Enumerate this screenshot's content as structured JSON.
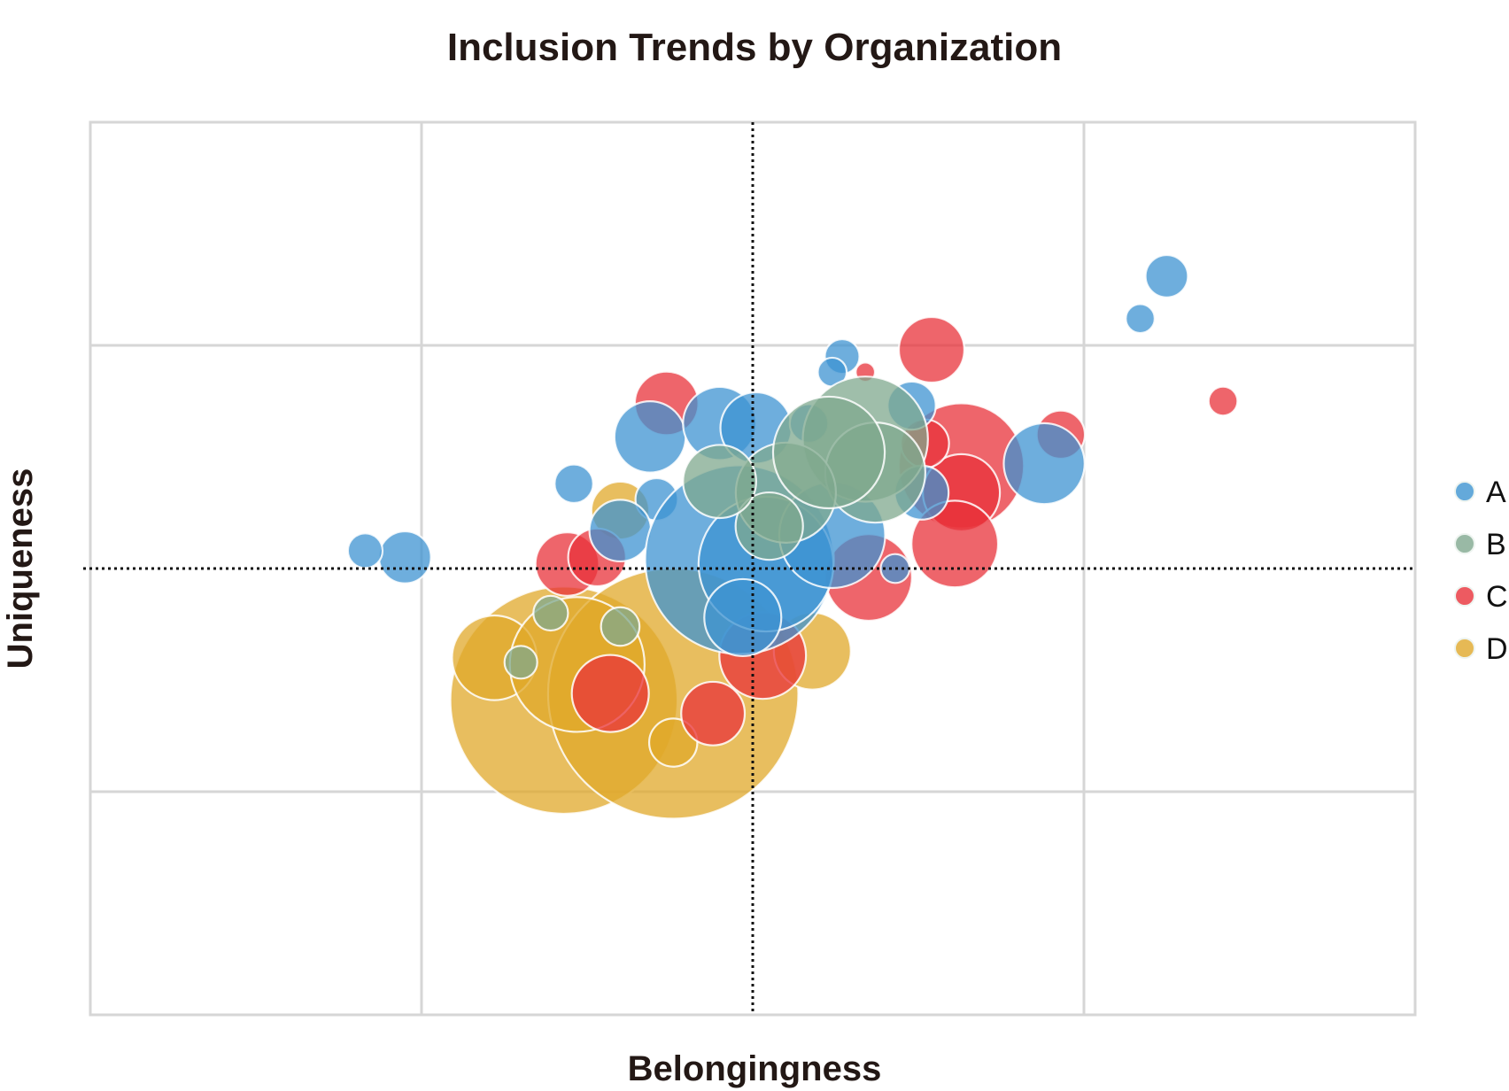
{
  "chart_data": {
    "type": "scatter",
    "subtype": "bubble",
    "title": "Inclusion Trends by Organization",
    "xlabel": "Belongingness",
    "ylabel": "Uniqueness",
    "xlim": [
      -20,
      20
    ],
    "ylim": [
      -20,
      20
    ],
    "grid": true,
    "reference_lines": {
      "x": 0,
      "y": 0,
      "style": "dotted"
    },
    "legend": {
      "placement": "right",
      "entries": [
        "A",
        "B",
        "C",
        "D"
      ]
    },
    "series": [
      {
        "name": "D",
        "color": "#e0a82a",
        "points": [
          {
            "x": -5.7,
            "y": -5.9,
            "size": 118
          },
          {
            "x": -2.4,
            "y": -5.6,
            "size": 130
          },
          {
            "x": -7.8,
            "y": -4.0,
            "size": 44
          },
          {
            "x": 1.8,
            "y": -3.7,
            "size": 40
          },
          {
            "x": -4.0,
            "y": 2.6,
            "size": 30
          },
          {
            "x": -5.3,
            "y": -4.3,
            "size": 70
          },
          {
            "x": -2.4,
            "y": -7.8,
            "size": 25
          }
        ]
      },
      {
        "name": "C",
        "color": "#e8313a",
        "points": [
          {
            "x": 5.4,
            "y": 9.8,
            "size": 34
          },
          {
            "x": -2.6,
            "y": 7.4,
            "size": 33
          },
          {
            "x": 14.2,
            "y": 7.5,
            "size": 15
          },
          {
            "x": 9.3,
            "y": 6.0,
            "size": 25
          },
          {
            "x": 6.3,
            "y": 4.6,
            "size": 65
          },
          {
            "x": 6.3,
            "y": 3.4,
            "size": 40
          },
          {
            "x": 6.1,
            "y": 1.1,
            "size": 45
          },
          {
            "x": 3.5,
            "y": -0.4,
            "size": 45
          },
          {
            "x": -4.3,
            "y": -5.6,
            "size": 40
          },
          {
            "x": -1.2,
            "y": -6.5,
            "size": 33
          },
          {
            "x": 0.3,
            "y": -3.9,
            "size": 45
          },
          {
            "x": -5.6,
            "y": 0.2,
            "size": 33
          },
          {
            "x": -4.7,
            "y": 0.5,
            "size": 30
          },
          {
            "x": 5.2,
            "y": 5.6,
            "size": 25
          },
          {
            "x": 3.4,
            "y": 8.8,
            "size": 10
          }
        ]
      },
      {
        "name": "A",
        "color": "#3d93d1",
        "points": [
          {
            "x": 12.5,
            "y": 13.1,
            "size": 22
          },
          {
            "x": 11.7,
            "y": 11.2,
            "size": 15
          },
          {
            "x": -10.5,
            "y": 0.5,
            "size": 27
          },
          {
            "x": -11.7,
            "y": 0.8,
            "size": 18
          },
          {
            "x": -5.4,
            "y": 3.8,
            "size": 20
          },
          {
            "x": -3.1,
            "y": 5.9,
            "size": 37
          },
          {
            "x": -1.0,
            "y": 6.5,
            "size": 38
          },
          {
            "x": 0.1,
            "y": 6.3,
            "size": 37
          },
          {
            "x": 2.7,
            "y": 9.5,
            "size": 18
          },
          {
            "x": 2.4,
            "y": 8.8,
            "size": 15
          },
          {
            "x": -2.9,
            "y": 3.1,
            "size": 22
          },
          {
            "x": -4.0,
            "y": 1.7,
            "size": 32
          },
          {
            "x": -0.4,
            "y": 0.4,
            "size": 98
          },
          {
            "x": 0.4,
            "y": 0.2,
            "size": 70
          },
          {
            "x": 2.4,
            "y": 1.5,
            "size": 55
          },
          {
            "x": 8.8,
            "y": 4.7,
            "size": 42
          },
          {
            "x": 5.1,
            "y": 3.4,
            "size": 28
          },
          {
            "x": 4.8,
            "y": 7.3,
            "size": 25
          },
          {
            "x": 4.3,
            "y": 0.0,
            "size": 15
          },
          {
            "x": 1.7,
            "y": 6.5,
            "size": 20
          },
          {
            "x": -0.3,
            "y": -2.2,
            "size": 40
          }
        ]
      },
      {
        "name": "B",
        "color": "#7fa88e",
        "points": [
          {
            "x": 3.4,
            "y": 5.8,
            "size": 65
          },
          {
            "x": 3.7,
            "y": 4.3,
            "size": 52
          },
          {
            "x": 1.0,
            "y": 3.4,
            "size": 52
          },
          {
            "x": 0.5,
            "y": 1.9,
            "size": 35
          },
          {
            "x": -1.0,
            "y": 3.9,
            "size": 38
          },
          {
            "x": 2.3,
            "y": 5.2,
            "size": 58
          },
          {
            "x": -6.1,
            "y": -2.0,
            "size": 18
          },
          {
            "x": -4.0,
            "y": -2.6,
            "size": 20
          },
          {
            "x": -7.0,
            "y": -4.2,
            "size": 17
          }
        ]
      }
    ]
  }
}
